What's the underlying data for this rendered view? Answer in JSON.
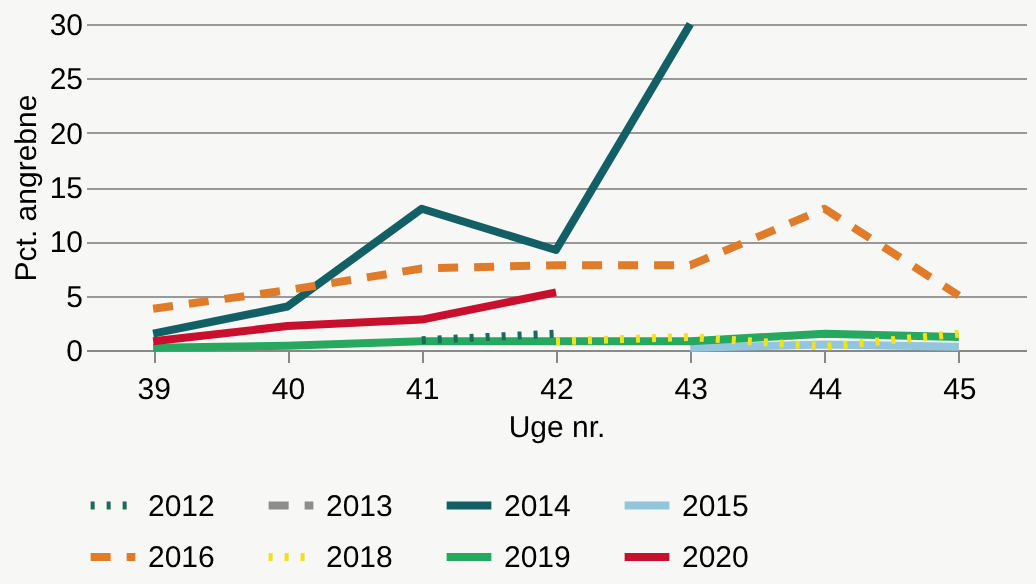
{
  "chart_data": {
    "type": "line",
    "xlabel": "Uge nr.",
    "ylabel": "Pct. angrebne",
    "categories": [
      "39",
      "40",
      "41",
      "42",
      "43",
      "44",
      "45"
    ],
    "ylim": [
      0,
      30
    ],
    "yticks": [
      0,
      5,
      10,
      15,
      20,
      25,
      30
    ],
    "grid": "y",
    "legend": "bottom",
    "series": [
      {
        "name": "2012",
        "color": "#1a6b5a",
        "line_style": "dotted",
        "values": [
          null,
          null,
          0.9,
          1.5,
          null,
          null,
          null
        ]
      },
      {
        "name": "2013",
        "color": "#8c8c8c",
        "line_style": "dashed",
        "values": [
          null,
          null,
          null,
          null,
          null,
          null,
          null
        ]
      },
      {
        "name": "2014",
        "color": "#125f66",
        "line_style": "solid",
        "values": [
          1.5,
          4,
          13,
          9.2,
          30,
          null,
          null
        ]
      },
      {
        "name": "2015",
        "color": "#92c5de",
        "line_style": "solid",
        "values": [
          null,
          null,
          null,
          null,
          0.2,
          0.5,
          0.3
        ]
      },
      {
        "name": "2016",
        "color": "#e07b2a",
        "line_style": "dashed",
        "values": [
          3.8,
          5.5,
          7.5,
          7.8,
          7.8,
          13,
          5
        ]
      },
      {
        "name": "2018",
        "color": "#f2e11c",
        "line_style": "dotted",
        "values": [
          null,
          null,
          null,
          0.8,
          1.2,
          0.3,
          1.5
        ]
      },
      {
        "name": "2019",
        "color": "#27a85f",
        "line_style": "solid",
        "values": [
          0.2,
          0.4,
          0.8,
          0.8,
          0.8,
          1.5,
          1.2
        ]
      },
      {
        "name": "2020",
        "color": "#c8102e",
        "line_style": "solid",
        "values": [
          0.8,
          2.2,
          2.8,
          5.3,
          null,
          null,
          null
        ]
      }
    ]
  }
}
